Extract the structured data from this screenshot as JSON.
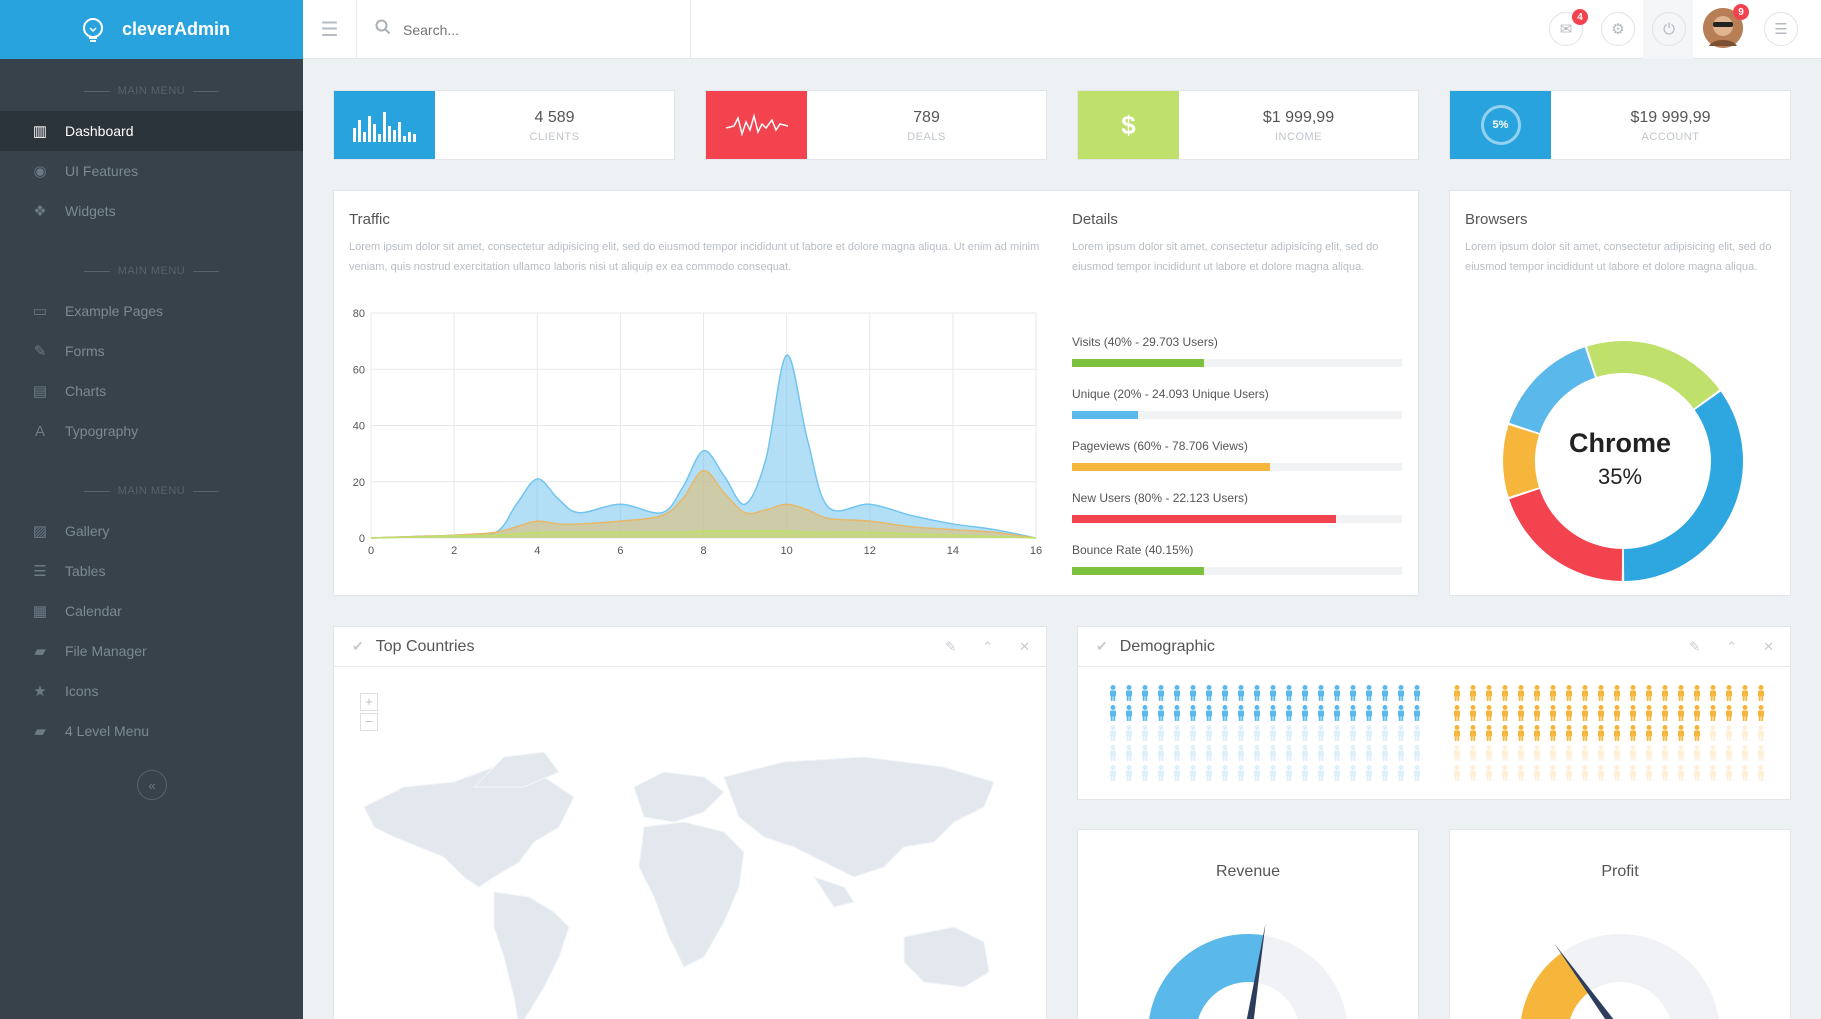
{
  "brand": {
    "name": "cleverAdmin"
  },
  "sidebar": {
    "sections": [
      {
        "label": "MAIN MENU",
        "items": [
          {
            "label": "Dashboard",
            "icon": "bar-chart-icon",
            "glyph": "▥",
            "active": true
          },
          {
            "label": "UI Features",
            "icon": "eye-icon",
            "glyph": "◉"
          },
          {
            "label": "Widgets",
            "icon": "cubes-icon",
            "glyph": "❖"
          }
        ]
      },
      {
        "label": "MAIN MENU",
        "items": [
          {
            "label": "Example Pages",
            "icon": "folder-icon",
            "glyph": "▭"
          },
          {
            "label": "Forms",
            "icon": "edit-icon",
            "glyph": "✎"
          },
          {
            "label": "Charts",
            "icon": "list-alt-icon",
            "glyph": "▤"
          },
          {
            "label": "Typography",
            "icon": "font-icon",
            "glyph": "A"
          }
        ]
      },
      {
        "label": "MAIN MENU",
        "items": [
          {
            "label": "Gallery",
            "icon": "picture-icon",
            "glyph": "▨"
          },
          {
            "label": "Tables",
            "icon": "table-icon",
            "glyph": "☰"
          },
          {
            "label": "Calendar",
            "icon": "calendar-icon",
            "glyph": "▦"
          },
          {
            "label": "File Manager",
            "icon": "folder-open-icon",
            "glyph": "▰"
          },
          {
            "label": "Icons",
            "icon": "star-icon",
            "glyph": "★"
          },
          {
            "label": "4 Level Menu",
            "icon": "folder-open-icon",
            "glyph": "▰"
          }
        ]
      }
    ],
    "collapse_glyph": "«"
  },
  "topbar": {
    "search_placeholder": "Search...",
    "messages_badge": "4",
    "profile_badge": "9"
  },
  "stats": [
    {
      "value": "4 589",
      "label": "CLIENTS",
      "color": "#29a3de",
      "icon": "bar-chart-icon"
    },
    {
      "value": "789",
      "label": "DEALS",
      "color": "#f2434f",
      "icon": "pulse-icon"
    },
    {
      "value": "$1 999,99",
      "label": "INCOME",
      "color": "#bfe06a",
      "icon": "dollar-icon",
      "glyph": "$"
    },
    {
      "value": "$19 999,99",
      "label": "ACCOUNT",
      "color": "#29a3de",
      "icon": "percent-circle-icon",
      "glyph": "5%"
    }
  ],
  "traffic": {
    "title": "Traffic",
    "text": "Lorem ipsum dolor sit amet, consectetur adipisicing elit, sed do eiusmod tempor incididunt ut labore et dolore magna aliqua. Ut enim ad minim veniam, quis nostrud exercitation ullamco laboris nisi ut aliquip ex ea commodo consequat."
  },
  "chart_data": {
    "type": "area",
    "x": [
      0,
      1,
      2,
      3,
      3.5,
      4,
      4.5,
      5,
      6,
      7,
      7.5,
      8,
      8.5,
      9,
      9.5,
      10,
      10.5,
      11,
      12,
      13,
      14,
      15,
      16
    ],
    "series": [
      {
        "name": "",
        "color": "#73c4ee",
        "values": [
          0,
          0.5,
          1,
          2,
          12,
          21,
          14,
          9,
          12,
          9,
          18,
          31,
          22,
          12,
          28,
          65,
          35,
          11,
          12,
          8,
          5,
          3,
          0
        ]
      },
      {
        "name": "",
        "color": "#e6b96a",
        "values": [
          0,
          0.5,
          1,
          2,
          4,
          6,
          5,
          5,
          6,
          8,
          14,
          24,
          16,
          9,
          10,
          12,
          10,
          7,
          6,
          4,
          3,
          2,
          0
        ]
      },
      {
        "name": "",
        "color": "#bfe06a",
        "values": [
          0,
          0.3,
          0.8,
          1,
          1.5,
          2,
          2,
          2,
          2,
          2,
          2,
          2.5,
          2.5,
          2.5,
          2.5,
          2.5,
          2,
          2,
          2,
          1.5,
          1,
          0.5,
          0
        ]
      }
    ],
    "xticks": [
      0,
      2,
      4,
      6,
      8,
      10,
      12,
      14,
      16
    ],
    "yticks": [
      0,
      20,
      40,
      60,
      80
    ],
    "xlim": [
      0,
      16
    ],
    "ylim": [
      0,
      80
    ],
    "grid": true
  },
  "details": {
    "title": "Details",
    "text": "Lorem ipsum dolor sit amet, consectetur adipisicing elit, sed do eiusmod tempor incididunt ut labore et dolore magna aliqua.",
    "bars": [
      {
        "label": "Visits (40% - 29.703 Users)",
        "percent": 40,
        "color": "#7ec13f"
      },
      {
        "label": "Unique (20% - 24.093 Unique Users)",
        "percent": 20,
        "color": "#5ab8ea"
      },
      {
        "label": "Pageviews (60% - 78.706 Views)",
        "percent": 60,
        "color": "#f6b63b"
      },
      {
        "label": "New Users (80% - 22.123 Users)",
        "percent": 80,
        "color": "#f2434f"
      },
      {
        "label": "Bounce Rate (40.15%)",
        "percent": 40.15,
        "color": "#7ec13f"
      }
    ]
  },
  "browsers": {
    "title": "Browsers",
    "text": "Lorem ipsum dolor sit amet, consectetur adipisicing elit, sed do eiusmod tempor incididunt ut labore et dolore magna aliqua.",
    "center_label": "Chrome",
    "center_value": "35%",
    "slices": [
      {
        "value": 35,
        "color": "#2ea6e0"
      },
      {
        "value": 20,
        "color": "#f2434f"
      },
      {
        "value": 10,
        "color": "#f6b63b"
      },
      {
        "value": 15,
        "color": "#5ab8ea"
      },
      {
        "value": 20,
        "color": "#bfe06a"
      }
    ]
  },
  "top_countries": {
    "title": "Top Countries",
    "zoom_in": "+",
    "zoom_out": "−"
  },
  "demographic": {
    "title": "Demographic",
    "male": {
      "color": "#5ab8ea",
      "filled": 40,
      "total": 100
    },
    "female": {
      "color": "#f6b63b",
      "filled": 56,
      "total": 100
    }
  },
  "revenue": {
    "title": "Revenue",
    "gauge_value": 0.55,
    "color": "#5ab8ea"
  },
  "profit": {
    "title": "Profit",
    "gauge_value": 0.3,
    "color": "#f6b63b"
  }
}
